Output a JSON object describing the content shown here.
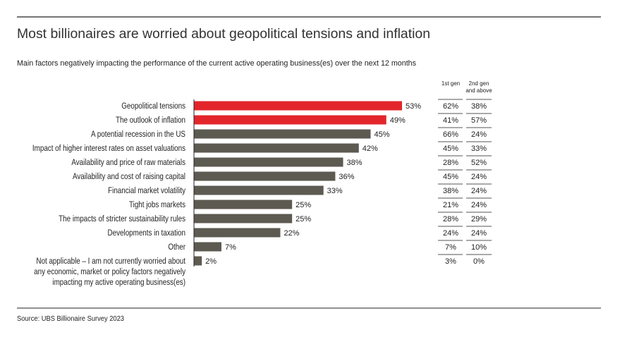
{
  "chart_data": {
    "type": "bar",
    "orientation": "horizontal",
    "title": "Most billionaires are worried about geopolitical tensions and inflation",
    "subtitle": "Main factors negatively impacting the performance of the current active operating business(es) over the next 12 months",
    "source": "Source: UBS Billionaire Survey 2023",
    "categories": [
      [
        "Geopolitical tensions"
      ],
      [
        "The outlook of inflation"
      ],
      [
        "A potential recession in the US"
      ],
      [
        "Impact of higher interest rates on asset valuations"
      ],
      [
        "Availability and price of raw materials"
      ],
      [
        "Availability and cost of raising capital"
      ],
      [
        "Financial market volatility"
      ],
      [
        "Tight jobs markets"
      ],
      [
        "The impacts of stricter sustainability rules"
      ],
      [
        "Developments in taxation"
      ],
      [
        "Other"
      ],
      [
        "Not applicable – I am not currently worried about",
        "any economic, market or policy factors negatively",
        "impacting my active operating business(es)"
      ]
    ],
    "values": [
      53,
      49,
      45,
      42,
      38,
      36,
      33,
      25,
      25,
      22,
      7,
      2
    ],
    "value_labels": [
      "53%",
      "49%",
      "45%",
      "42%",
      "38%",
      "36%",
      "33%",
      "25%",
      "25%",
      "22%",
      "7%",
      "2%"
    ],
    "highlighted": [
      true,
      true,
      false,
      false,
      false,
      false,
      false,
      false,
      false,
      false,
      false,
      false
    ],
    "colors": {
      "highlight": "#e3262b",
      "default": "#5d5a52",
      "rule": "#222222",
      "table_rule": "#777777"
    },
    "table": {
      "columns": [
        [
          "1st gen"
        ],
        [
          "2nd gen",
          "and above"
        ]
      ],
      "first_gen": [
        "62%",
        "41%",
        "66%",
        "45%",
        "28%",
        "45%",
        "38%",
        "21%",
        "28%",
        "24%",
        "7%",
        "3%"
      ],
      "second_gen": [
        "38%",
        "57%",
        "24%",
        "33%",
        "52%",
        "24%",
        "24%",
        "24%",
        "29%",
        "24%",
        "10%",
        "0%"
      ]
    },
    "xlim": [
      0,
      100
    ],
    "grid": false,
    "legend": "none"
  }
}
